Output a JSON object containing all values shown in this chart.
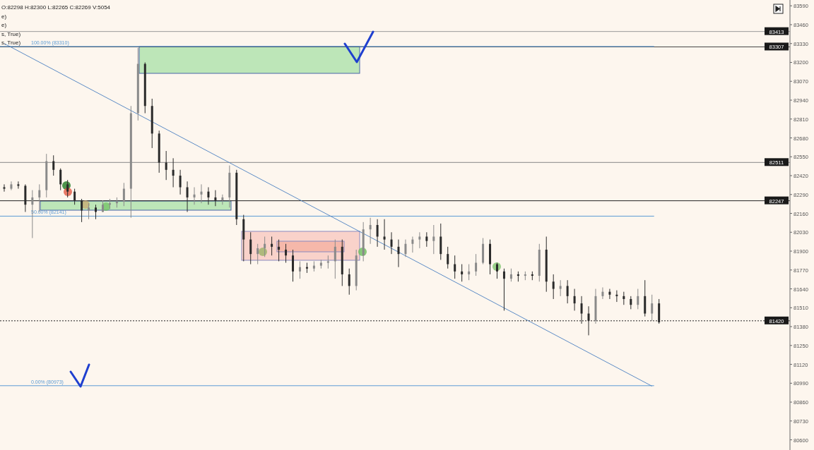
{
  "chart_data": {
    "type": "candlestick",
    "annotations": [
      "O:82298 H:82300 L:82265 C:82269 V:5054",
      "e)",
      "e)",
      "s, True)",
      "s, True)"
    ],
    "categories": [
      null,
      null,
      null,
      null,
      null,
      null,
      null,
      null,
      null,
      null,
      null,
      null,
      null,
      null,
      null,
      null,
      null,
      null,
      null,
      null,
      null,
      null,
      null,
      null,
      null,
      null,
      null,
      null,
      null,
      null,
      null,
      null,
      null,
      null,
      null,
      null,
      null,
      null,
      null,
      null,
      null,
      null,
      null,
      null,
      null,
      null,
      null,
      null,
      null,
      null,
      null,
      null,
      null,
      null,
      null,
      null,
      null,
      null,
      null,
      null,
      null,
      null,
      null,
      null,
      null,
      null,
      null,
      null,
      null,
      null,
      null,
      null,
      null,
      null,
      null,
      null,
      null,
      null,
      null,
      null,
      null,
      null,
      null,
      null,
      null,
      null,
      null,
      null,
      null,
      null,
      null,
      null,
      null,
      null,
      null,
      null,
      null,
      null,
      null,
      null,
      null,
      null,
      null,
      null,
      null,
      null,
      null,
      null,
      null,
      null,
      null,
      null
    ],
    "ohlc": [
      [
        82340,
        82360,
        82310,
        82330
      ],
      [
        82330,
        82380,
        82320,
        82360
      ],
      [
        82360,
        82380,
        82330,
        82350
      ],
      [
        82350,
        82360,
        82170,
        82220
      ],
      [
        82220,
        82320,
        81990,
        82270
      ],
      [
        82270,
        82360,
        82170,
        82320
      ],
      [
        82320,
        82570,
        82270,
        82520
      ],
      [
        82520,
        82560,
        82420,
        82460
      ],
      [
        82460,
        82470,
        82320,
        82360
      ],
      [
        82360,
        82390,
        82270,
        82310
      ],
      [
        82310,
        82330,
        82220,
        82250
      ],
      [
        82250,
        82260,
        82100,
        82180
      ],
      [
        82180,
        82230,
        82120,
        82200
      ],
      [
        82200,
        82220,
        82120,
        82170
      ],
      [
        82170,
        82250,
        82170,
        82220
      ],
      [
        82220,
        82260,
        82190,
        82230
      ],
      [
        82230,
        82270,
        82200,
        82240
      ],
      [
        82240,
        82370,
        82210,
        82330
      ],
      [
        82330,
        82900,
        82130,
        82850
      ],
      [
        82850,
        83300,
        82800,
        83190
      ],
      [
        83190,
        83200,
        82850,
        82900
      ],
      [
        82900,
        82950,
        82610,
        82710
      ],
      [
        82710,
        82730,
        82440,
        82510
      ],
      [
        82510,
        82590,
        82390,
        82460
      ],
      [
        82460,
        82540,
        82340,
        82420
      ],
      [
        82420,
        82460,
        82290,
        82340
      ],
      [
        82340,
        82380,
        82170,
        82270
      ],
      [
        82270,
        82340,
        82220,
        82290
      ],
      [
        82290,
        82360,
        82230,
        82310
      ],
      [
        82310,
        82340,
        82220,
        82270
      ],
      [
        82270,
        82320,
        82210,
        82250
      ],
      [
        82250,
        82290,
        82220,
        82270
      ],
      [
        82270,
        82490,
        82200,
        82440
      ],
      [
        82440,
        82460,
        82080,
        82120
      ],
      [
        82120,
        82150,
        81830,
        81980
      ],
      [
        81980,
        82030,
        81810,
        81880
      ],
      [
        81880,
        81950,
        81810,
        81920
      ],
      [
        81920,
        82000,
        81860,
        81950
      ],
      [
        81950,
        82000,
        81870,
        81930
      ],
      [
        81930,
        81980,
        81830,
        81910
      ],
      [
        81910,
        81950,
        81820,
        81870
      ],
      [
        81870,
        81910,
        81690,
        81760
      ],
      [
        81760,
        81830,
        81710,
        81790
      ],
      [
        81790,
        81820,
        81750,
        81780
      ],
      [
        81780,
        81830,
        81760,
        81800
      ],
      [
        81800,
        81840,
        81780,
        81820
      ],
      [
        81820,
        81870,
        81780,
        81830
      ],
      [
        81830,
        81980,
        81710,
        81930
      ],
      [
        81930,
        81980,
        81660,
        81740
      ],
      [
        81740,
        81780,
        81600,
        81660
      ],
      [
        81660,
        81910,
        81630,
        81870
      ],
      [
        81870,
        82100,
        81830,
        82050
      ],
      [
        82050,
        82130,
        81950,
        82080
      ],
      [
        82080,
        82120,
        81930,
        82000
      ],
      [
        82000,
        82120,
        81910,
        81980
      ],
      [
        81980,
        82030,
        81880,
        81930
      ],
      [
        81930,
        81980,
        81790,
        81880
      ],
      [
        81880,
        81980,
        81860,
        81950
      ],
      [
        81950,
        82000,
        81890,
        81980
      ],
      [
        81980,
        82030,
        81920,
        82000
      ],
      [
        82000,
        82030,
        81930,
        81970
      ],
      [
        81970,
        82080,
        81880,
        82000
      ],
      [
        82000,
        82090,
        81840,
        81880
      ],
      [
        81880,
        81930,
        81780,
        81810
      ],
      [
        81810,
        81870,
        81710,
        81760
      ],
      [
        81760,
        81810,
        81690,
        81740
      ],
      [
        81740,
        81810,
        81700,
        81760
      ],
      [
        81760,
        81880,
        81730,
        81820
      ],
      [
        81820,
        81990,
        81810,
        81950
      ],
      [
        81950,
        81980,
        81740,
        81810
      ],
      [
        81810,
        81820,
        81710,
        81760
      ],
      [
        81760,
        81780,
        81490,
        81710
      ],
      [
        81710,
        81780,
        81690,
        81740
      ],
      [
        81740,
        81760,
        81690,
        81730
      ],
      [
        81730,
        81760,
        81700,
        81740
      ],
      [
        81740,
        81760,
        81700,
        81730
      ],
      [
        81730,
        81950,
        81690,
        81910
      ],
      [
        81910,
        82000,
        81620,
        81690
      ],
      [
        81690,
        81740,
        81570,
        81640
      ],
      [
        81640,
        81700,
        81590,
        81660
      ],
      [
        81660,
        81700,
        81540,
        81590
      ],
      [
        81590,
        81640,
        81490,
        81540
      ],
      [
        81540,
        81590,
        81400,
        81470
      ],
      [
        81470,
        81520,
        81320,
        81420
      ],
      [
        81420,
        81640,
        81400,
        81590
      ],
      [
        81590,
        81650,
        81570,
        81620
      ],
      [
        81620,
        81640,
        81570,
        81600
      ],
      [
        81600,
        81630,
        81550,
        81590
      ],
      [
        81590,
        81620,
        81530,
        81570
      ],
      [
        81570,
        81590,
        81500,
        81530
      ],
      [
        81530,
        81640,
        81500,
        81590
      ],
      [
        81590,
        81700,
        81450,
        81470
      ],
      [
        81470,
        81600,
        81420,
        81540
      ],
      [
        81540,
        81570,
        81400,
        81410
      ],
      null,
      null,
      null,
      null,
      null,
      null,
      null,
      null,
      null,
      null,
      null,
      null,
      null,
      null,
      null,
      null,
      null,
      null
    ],
    "series": [
      {
        "type": "line",
        "color": "#4a7fc1",
        "values": [
          83330,
          null,
          null,
          null,
          null,
          null,
          null,
          null,
          null,
          null,
          null,
          null,
          null,
          null,
          null,
          null,
          null,
          null,
          null,
          null,
          null,
          null,
          null,
          null,
          null,
          null,
          null,
          null,
          null,
          null,
          null,
          null,
          null,
          null,
          null,
          null,
          null,
          null,
          null,
          null,
          null,
          null,
          null,
          null,
          null,
          null,
          null,
          null,
          null,
          null,
          null,
          null,
          null,
          null,
          null,
          null,
          null,
          null,
          null,
          null,
          null,
          null,
          null,
          null,
          null,
          null,
          null,
          null,
          null,
          null,
          null,
          null,
          null,
          null,
          null,
          null,
          null,
          null,
          null,
          null,
          null,
          null,
          null,
          null,
          null,
          null,
          null,
          null,
          null,
          null,
          null,
          null,
          80970,
          null,
          null,
          null,
          null,
          null,
          null,
          null,
          null,
          null,
          null,
          null,
          null,
          null,
          null,
          null,
          null,
          null,
          null,
          null
        ]
      }
    ],
    "ylim": [
      80530,
      83630
    ],
    "yticks": [
      83590,
      83460,
      83330,
      83200,
      83070,
      82940,
      82810,
      82680,
      82550,
      82420,
      82290,
      82160,
      82030,
      81900,
      81770,
      81640,
      81510,
      81380,
      81250,
      81120,
      80990,
      80860,
      80730,
      80600
    ],
    "ref_lines": [
      {
        "axis": "y",
        "value": 83413,
        "label": "83413",
        "color": "#999999"
      },
      {
        "axis": "y",
        "value": 83307,
        "label": "83307",
        "color": "#444444"
      },
      {
        "axis": "y",
        "value": 82511,
        "label": "82511",
        "color": "#888888"
      },
      {
        "axis": "y",
        "value": 82247,
        "label": "82247",
        "color": "#222222"
      },
      {
        "axis": "y",
        "value": 81420,
        "label": "81420",
        "color": "#222222",
        "line_style": "dotted"
      },
      {
        "axis": "y",
        "value": 83310,
        "label": "100.00% (83310)",
        "color": "#5b9bd5"
      },
      {
        "axis": "y",
        "value": 82141,
        "label": "50.00% (82141)",
        "color": "#5b9bd5"
      },
      {
        "axis": "y",
        "value": 80973,
        "label": "0.00% (80973)",
        "color": "#5b9bd5"
      }
    ]
  }
}
